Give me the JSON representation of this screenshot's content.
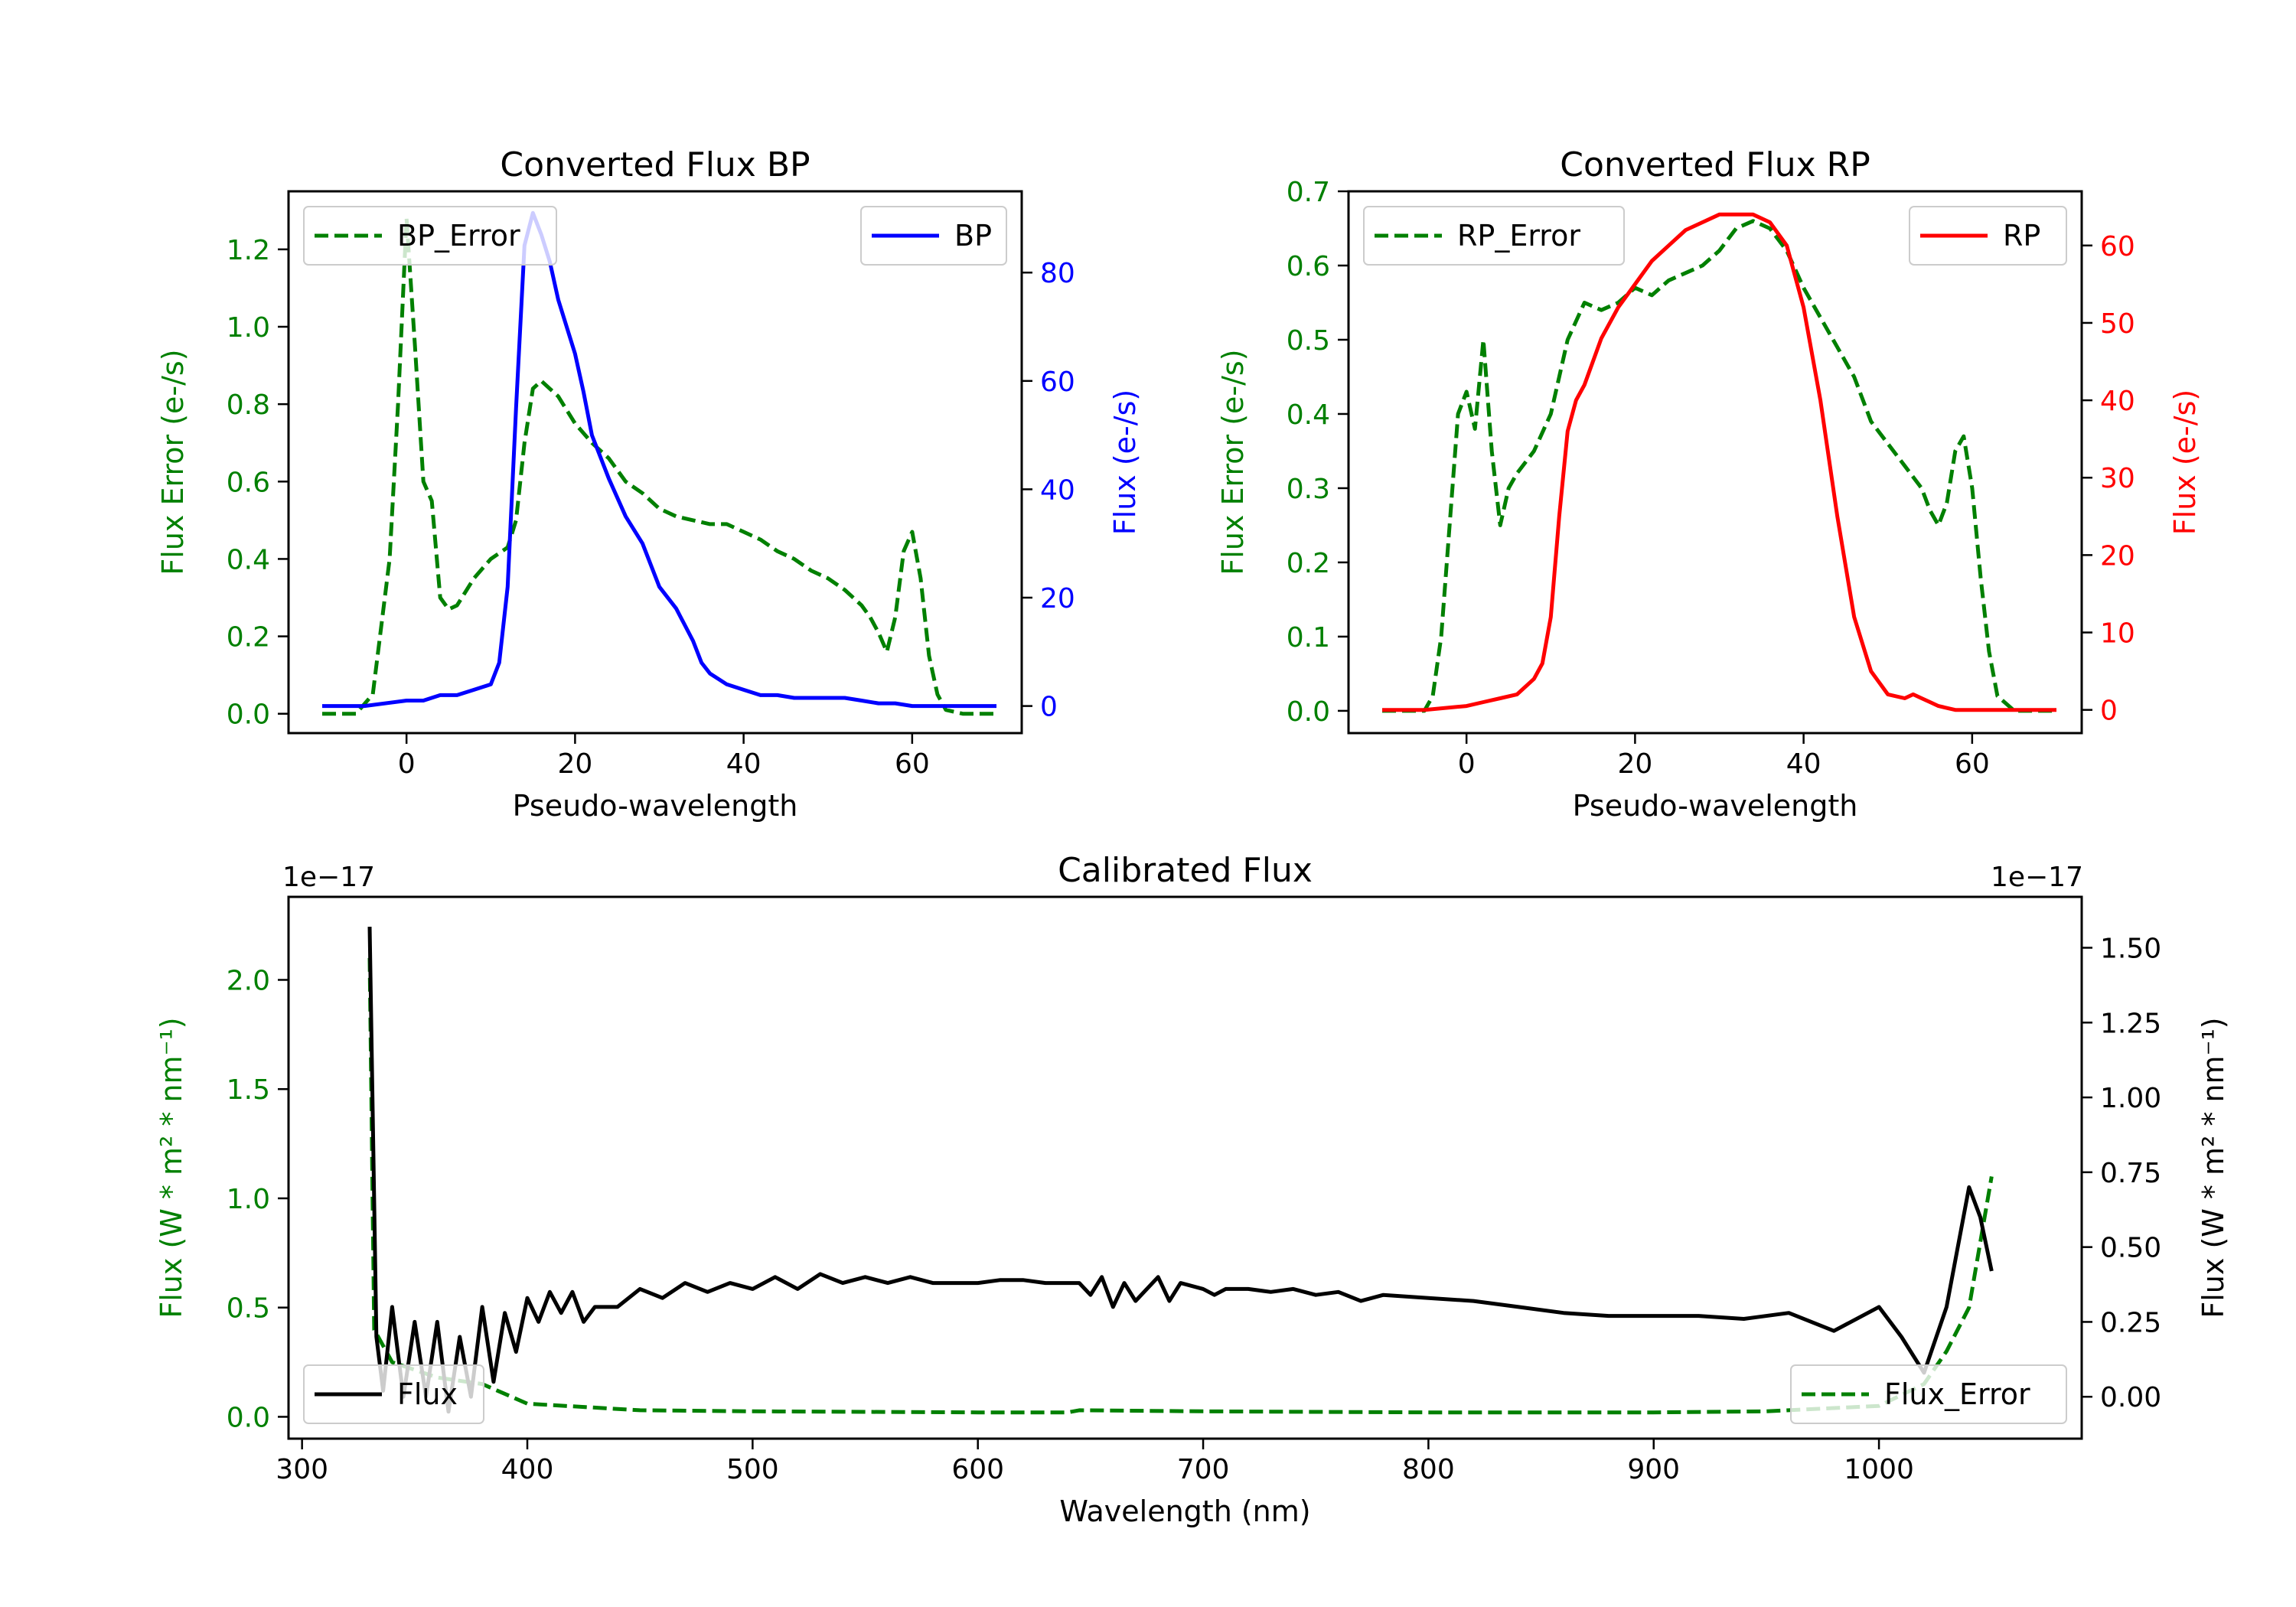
{
  "chart_data": [
    {
      "type": "line",
      "title": "Converted Flux BP",
      "xlabel": "Pseudo-wavelength",
      "ylabel_left": "Flux Error (e-/s)",
      "ylabel_right": "Flux (e-/s)",
      "xlim": [
        -14,
        73
      ],
      "ylim_left": [
        -0.05,
        1.35
      ],
      "ylim_right": [
        -5,
        95
      ],
      "xticks": [
        "0",
        "20",
        "40",
        "60"
      ],
      "yticks_left": [
        "0.0",
        "0.2",
        "0.4",
        "0.6",
        "0.8",
        "1.0",
        "1.2"
      ],
      "yticks_right": [
        "0",
        "20",
        "40",
        "60",
        "80"
      ],
      "series": [
        {
          "name": "BP_Error",
          "axis": "left",
          "color": "#008000",
          "style": "dashed",
          "x": [
            -10,
            -6,
            -4,
            -2,
            -1,
            0,
            1,
            2,
            3,
            4,
            5,
            6,
            8,
            10,
            12,
            13,
            14,
            15,
            16,
            18,
            20,
            22,
            24,
            26,
            28,
            30,
            32,
            34,
            36,
            38,
            40,
            42,
            44,
            46,
            48,
            50,
            52,
            54,
            55,
            56,
            57,
            58,
            59,
            60,
            61,
            62,
            63,
            64,
            66,
            70
          ],
          "values": [
            0.0,
            0.0,
            0.05,
            0.4,
            0.8,
            1.28,
            0.95,
            0.6,
            0.55,
            0.3,
            0.27,
            0.28,
            0.35,
            0.4,
            0.43,
            0.5,
            0.7,
            0.84,
            0.86,
            0.82,
            0.75,
            0.7,
            0.66,
            0.6,
            0.57,
            0.53,
            0.51,
            0.5,
            0.49,
            0.49,
            0.47,
            0.45,
            0.42,
            0.4,
            0.37,
            0.35,
            0.32,
            0.28,
            0.25,
            0.21,
            0.16,
            0.25,
            0.42,
            0.47,
            0.35,
            0.15,
            0.05,
            0.01,
            0.0,
            0.0
          ]
        },
        {
          "name": "BP",
          "axis": "right",
          "color": "#0000ff",
          "style": "solid",
          "x": [
            -10,
            -5,
            0,
            2,
            4,
            6,
            8,
            10,
            11,
            12,
            13,
            14,
            15,
            16,
            17,
            18,
            19,
            20,
            21,
            22,
            24,
            26,
            28,
            30,
            32,
            34,
            35,
            36,
            38,
            40,
            42,
            44,
            46,
            48,
            50,
            52,
            54,
            56,
            58,
            60,
            62,
            64,
            66,
            70
          ],
          "values": [
            0,
            0,
            1,
            1,
            2,
            2,
            3,
            4,
            8,
            22,
            55,
            85,
            91,
            87,
            82,
            75,
            70,
            65,
            58,
            50,
            42,
            35,
            30,
            22,
            18,
            12,
            8,
            6,
            4,
            3,
            2,
            2,
            1.5,
            1.5,
            1.5,
            1.5,
            1,
            0.5,
            0.5,
            0,
            0,
            0,
            0,
            0
          ]
        }
      ]
    },
    {
      "type": "line",
      "title": "Converted Flux RP",
      "xlabel": "Pseudo-wavelength",
      "ylabel_left": "Flux Error (e-/s)",
      "ylabel_right": "Flux (e-/s)",
      "xlim": [
        -14,
        73
      ],
      "ylim_left": [
        -0.03,
        0.7
      ],
      "ylim_right": [
        -3,
        67
      ],
      "xticks": [
        "0",
        "20",
        "40",
        "60"
      ],
      "yticks_left": [
        "0.0",
        "0.1",
        "0.2",
        "0.3",
        "0.4",
        "0.5",
        "0.6",
        "0.7"
      ],
      "yticks_right": [
        "0",
        "10",
        "20",
        "30",
        "40",
        "50",
        "60"
      ],
      "series": [
        {
          "name": "RP_Error",
          "axis": "left",
          "color": "#008000",
          "style": "dashed",
          "x": [
            -10,
            -5,
            -4,
            -3,
            -2,
            -1,
            0,
            1,
            2,
            3,
            4,
            5,
            6,
            8,
            10,
            12,
            14,
            16,
            18,
            20,
            22,
            24,
            26,
            28,
            30,
            32,
            34,
            36,
            38,
            40,
            42,
            44,
            46,
            48,
            50,
            52,
            54,
            55,
            56,
            57,
            58,
            59,
            60,
            61,
            62,
            63,
            65,
            70
          ],
          "values": [
            0.0,
            0.0,
            0.02,
            0.1,
            0.25,
            0.4,
            0.43,
            0.38,
            0.5,
            0.35,
            0.25,
            0.3,
            0.32,
            0.35,
            0.4,
            0.5,
            0.55,
            0.54,
            0.55,
            0.57,
            0.56,
            0.58,
            0.59,
            0.6,
            0.62,
            0.65,
            0.66,
            0.65,
            0.62,
            0.57,
            0.53,
            0.49,
            0.45,
            0.39,
            0.36,
            0.33,
            0.3,
            0.27,
            0.25,
            0.28,
            0.35,
            0.37,
            0.3,
            0.18,
            0.08,
            0.02,
            0.0,
            0.0
          ]
        },
        {
          "name": "RP",
          "axis": "right",
          "color": "#ff0000",
          "style": "solid",
          "x": [
            -10,
            -5,
            0,
            2,
            4,
            6,
            8,
            9,
            10,
            11,
            12,
            13,
            14,
            16,
            18,
            20,
            22,
            24,
            26,
            28,
            30,
            32,
            34,
            36,
            38,
            40,
            42,
            44,
            46,
            48,
            50,
            52,
            53,
            54,
            55,
            56,
            58,
            60,
            70
          ],
          "values": [
            0,
            0,
            0.5,
            1,
            1.5,
            2,
            4,
            6,
            12,
            25,
            36,
            40,
            42,
            48,
            52,
            55,
            58,
            60,
            62,
            63,
            64,
            64,
            64,
            63,
            60,
            52,
            40,
            25,
            12,
            5,
            2,
            1.5,
            2,
            1.5,
            1,
            0.5,
            0,
            0,
            0
          ]
        }
      ]
    },
    {
      "type": "line",
      "title": "Calibrated Flux",
      "xlabel": "Wavelength (nm)",
      "ylabel_left": "Flux (W * m² * nm⁻¹)",
      "ylabel_right": "Flux (W * m² * nm⁻¹)",
      "offset_left": "1e−17",
      "offset_right": "1e−17",
      "xlim": [
        294,
        1090
      ],
      "ylim_left": [
        -0.1,
        2.38
      ],
      "ylim_right": [
        -0.14,
        1.67
      ],
      "xticks": [
        "300",
        "400",
        "500",
        "600",
        "700",
        "800",
        "900",
        "1000"
      ],
      "yticks_left": [
        "0.0",
        "0.5",
        "1.0",
        "1.5",
        "2.0"
      ],
      "yticks_right": [
        "0.00",
        "0.25",
        "0.50",
        "0.75",
        "1.00",
        "1.25",
        "1.50"
      ],
      "series": [
        {
          "name": "Flux_Error",
          "axis": "left",
          "color": "#008000",
          "style": "dashed",
          "x": [
            330,
            332,
            340,
            360,
            380,
            400,
            450,
            500,
            600,
            640,
            645,
            700,
            800,
            900,
            950,
            1000,
            1020,
            1030,
            1040,
            1050
          ],
          "values": [
            2.1,
            0.4,
            0.25,
            0.18,
            0.15,
            0.06,
            0.03,
            0.025,
            0.02,
            0.02,
            0.03,
            0.025,
            0.02,
            0.02,
            0.025,
            0.05,
            0.15,
            0.3,
            0.5,
            1.1
          ]
        },
        {
          "name": "Flux",
          "axis": "right",
          "color": "#000000",
          "style": "solid",
          "x": [
            330,
            333,
            336,
            340,
            345,
            350,
            355,
            360,
            365,
            370,
            375,
            380,
            385,
            390,
            395,
            400,
            405,
            410,
            415,
            420,
            425,
            430,
            440,
            450,
            460,
            470,
            480,
            490,
            500,
            510,
            520,
            530,
            540,
            550,
            560,
            570,
            580,
            590,
            600,
            610,
            620,
            630,
            640,
            645,
            650,
            655,
            660,
            665,
            670,
            680,
            685,
            690,
            700,
            705,
            710,
            720,
            730,
            740,
            750,
            760,
            770,
            780,
            800,
            820,
            840,
            860,
            880,
            900,
            920,
            940,
            960,
            980,
            1000,
            1010,
            1020,
            1030,
            1040,
            1045,
            1050
          ],
          "values": [
            1.57,
            0.2,
            0.02,
            0.3,
            0.0,
            0.25,
            0.0,
            0.25,
            -0.05,
            0.2,
            0.0,
            0.3,
            0.05,
            0.28,
            0.15,
            0.33,
            0.25,
            0.35,
            0.28,
            0.35,
            0.25,
            0.3,
            0.3,
            0.36,
            0.33,
            0.38,
            0.35,
            0.38,
            0.36,
            0.4,
            0.36,
            0.41,
            0.38,
            0.4,
            0.38,
            0.4,
            0.38,
            0.38,
            0.38,
            0.39,
            0.39,
            0.38,
            0.38,
            0.38,
            0.34,
            0.4,
            0.3,
            0.38,
            0.32,
            0.4,
            0.32,
            0.38,
            0.36,
            0.34,
            0.36,
            0.36,
            0.35,
            0.36,
            0.34,
            0.35,
            0.32,
            0.34,
            0.33,
            0.32,
            0.3,
            0.28,
            0.27,
            0.27,
            0.27,
            0.26,
            0.28,
            0.22,
            0.3,
            0.2,
            0.08,
            0.3,
            0.7,
            0.6,
            0.42
          ]
        }
      ]
    }
  ]
}
